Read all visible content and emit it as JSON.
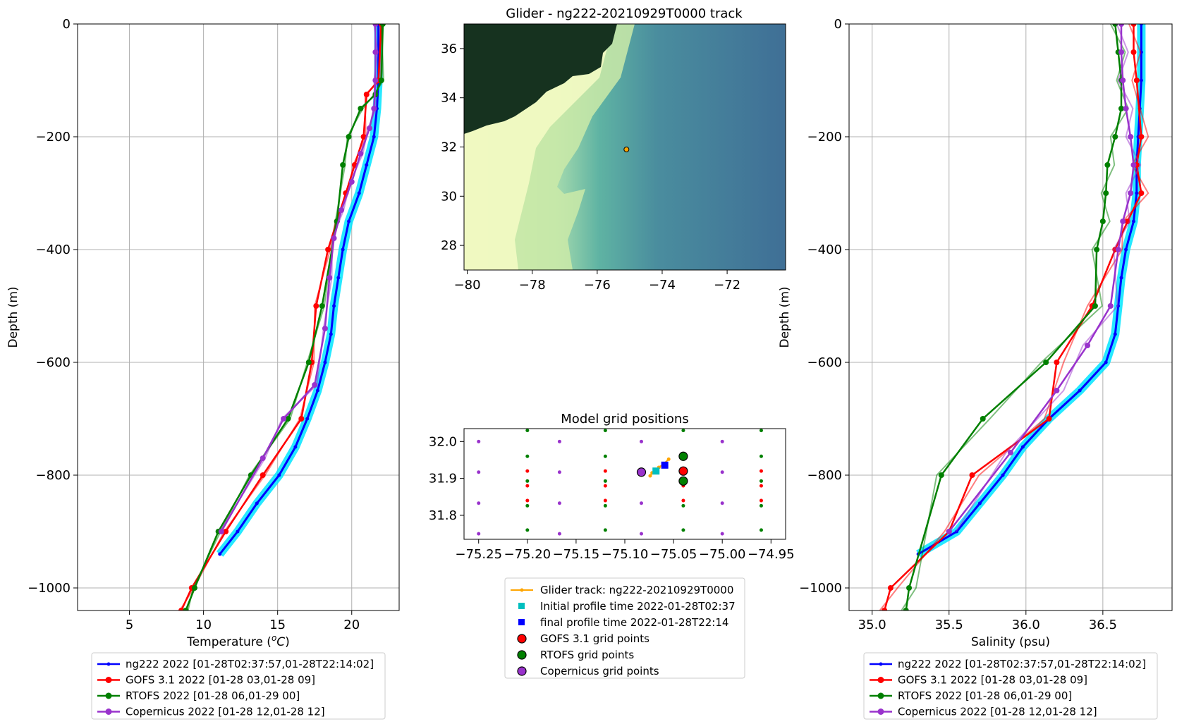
{
  "chart_data": [
    {
      "type": "line",
      "panel": "temperature",
      "xlabel": "Temperature (°C)",
      "ylabel": "Depth (m)",
      "xlim": [
        1.5,
        23.2
      ],
      "ylim": [
        -1040,
        0
      ],
      "xticks": [
        5,
        10,
        15,
        20
      ],
      "yticks": [
        0,
        -200,
        -400,
        -600,
        -800,
        -1000
      ],
      "grid": true,
      "legend": "below",
      "series": [
        {
          "name": "ng222 2022 [01-28T02:37:57,01-28T22:14:02]",
          "color": "#0000ff",
          "marker": "dot",
          "x": [
            21.8,
            21.8,
            21.8,
            21.7,
            21.5,
            21.0,
            20.5,
            19.8,
            19.4,
            19.1,
            18.8,
            18.6,
            18.2,
            17.7,
            17.0,
            16.2,
            15.1,
            13.6,
            12.3,
            11.1
          ],
          "y": [
            0,
            -50,
            -100,
            -150,
            -200,
            -250,
            -300,
            -350,
            -400,
            -450,
            -500,
            -550,
            -600,
            -650,
            -700,
            -750,
            -800,
            -850,
            -900,
            -940
          ]
        },
        {
          "name": "GOFS 3.1 2022 [01-28 03,01-28 09]",
          "color": "#ff0000",
          "marker": "circle",
          "x": [
            22.0,
            21.8,
            21.0,
            20.8,
            20.2,
            19.6,
            19.0,
            18.4,
            17.6,
            17.3,
            16.6,
            14.0,
            11.5,
            9.2,
            8.5
          ],
          "y": [
            0,
            -100,
            -125,
            -200,
            -250,
            -300,
            -350,
            -400,
            -500,
            -600,
            -700,
            -800,
            -900,
            -1000,
            -1040
          ]
        },
        {
          "name": "RTOFS 2022 [01-28 06,01-29 00]",
          "color": "#008000",
          "marker": "circle",
          "x": [
            22.1,
            22.0,
            21.6,
            20.6,
            19.8,
            19.4,
            19.0,
            18.0,
            17.1,
            15.7,
            13.2,
            11.0,
            9.4,
            8.8
          ],
          "y": [
            0,
            -100,
            -125,
            -150,
            -200,
            -250,
            -350,
            -500,
            -600,
            -700,
            -800,
            -900,
            -1000,
            -1040
          ]
        },
        {
          "name": "Copernicus 2022 [01-28 12,01-28 12]",
          "color": "#9932cc",
          "marker": "circle",
          "x": [
            21.6,
            21.6,
            21.6,
            21.5,
            21.2,
            20.6,
            20.0,
            19.3,
            18.8,
            18.5,
            18.2,
            17.5,
            15.4,
            14.0,
            11.2
          ],
          "y": [
            0,
            -50,
            -100,
            -150,
            -185,
            -230,
            -280,
            -330,
            -380,
            -450,
            -540,
            -640,
            -700,
            -770,
            -900
          ]
        }
      ]
    },
    {
      "type": "map",
      "panel": "track_map",
      "title": "Glider - ng222-20210929T0000 track",
      "xlim": [
        -80.1,
        -70.2
      ],
      "ylim": [
        27,
        37
      ],
      "xticks": [
        -80,
        -78,
        -76,
        -74,
        -72
      ],
      "yticks": [
        36,
        34,
        32,
        30,
        28
      ],
      "glider_position": [
        -75.1,
        31.9
      ]
    },
    {
      "type": "scatter",
      "panel": "model_grid",
      "title": "Model grid positions",
      "xlim": [
        -75.265,
        -74.935
      ],
      "ylim": [
        31.735,
        32.035
      ],
      "xticks": [
        -75.25,
        -75.2,
        -75.15,
        -75.1,
        -75.05,
        -75.0,
        -74.95
      ],
      "yticks": [
        32.0,
        31.9,
        31.8
      ],
      "series": [
        {
          "name": "Glider track: ng222-20210929T0000",
          "color": "#ffa500",
          "marker": "line-dot",
          "x": [
            -75.074,
            -75.072,
            -75.068,
            -75.065,
            -75.06,
            -75.055
          ],
          "y": [
            31.907,
            31.915,
            31.922,
            31.93,
            31.94,
            31.952
          ]
        },
        {
          "name": "Initial profile time 2022-01-28T02:37",
          "color": "#00bfbf",
          "marker": "square",
          "x": [
            -75.068
          ],
          "y": [
            31.92
          ]
        },
        {
          "name": "final profile time 2022-01-28T22:14",
          "color": "#0000ff",
          "marker": "square",
          "x": [
            -75.059
          ],
          "y": [
            31.936
          ]
        },
        {
          "name": "GOFS 3.1 grid points",
          "color": "#ff0000",
          "marker": "circle",
          "x": [
            -75.04
          ],
          "y": [
            31.92
          ]
        },
        {
          "name": "RTOFS grid points",
          "color": "#008000",
          "marker": "circle",
          "x": [
            -75.04,
            -75.04
          ],
          "y": [
            31.96,
            31.893
          ]
        },
        {
          "name": "Copernicus grid points",
          "color": "#9932cc",
          "marker": "circle",
          "x": [
            -75.083
          ],
          "y": [
            31.917
          ]
        }
      ],
      "grid_points": {
        "gofs_x": [
          -75.2,
          -75.12,
          -75.04,
          -74.96
        ],
        "gofs_y": [
          31.92,
          31.88,
          31.84
        ],
        "rtofs_x": [
          -75.2,
          -75.12,
          -75.04,
          -74.96
        ],
        "rtofs_y": [
          32.03,
          31.96,
          31.893,
          31.826,
          31.76
        ],
        "cop_x": [
          -75.25,
          -75.167,
          -75.083,
          -75.0
        ],
        "cop_y": [
          32.0,
          31.917,
          31.833,
          31.75
        ]
      }
    },
    {
      "type": "line",
      "panel": "salinity",
      "xlabel": "Salinity (psu)",
      "ylabel": "Depth (m)",
      "xlim": [
        34.85,
        36.95
      ],
      "ylim": [
        -1040,
        0
      ],
      "xticks": [
        35.0,
        35.5,
        36.0,
        36.5
      ],
      "yticks": [
        0,
        -200,
        -400,
        -600,
        -800,
        -1000
      ],
      "grid": true,
      "legend": "below",
      "series": [
        {
          "name": "ng222 2022 [01-28T02:37:57,01-28T22:14:02]",
          "color": "#0000ff",
          "marker": "dot",
          "x": [
            36.75,
            36.75,
            36.75,
            36.74,
            36.73,
            36.72,
            36.72,
            36.7,
            36.65,
            36.62,
            36.6,
            36.58,
            36.52,
            36.35,
            36.15,
            35.98,
            35.85,
            35.7,
            35.55,
            35.3
          ],
          "y": [
            0,
            -50,
            -100,
            -150,
            -200,
            -250,
            -300,
            -350,
            -400,
            -450,
            -500,
            -550,
            -600,
            -650,
            -700,
            -750,
            -800,
            -850,
            -900,
            -940
          ]
        },
        {
          "name": "GOFS 3.1 2022 [01-28 03,01-28 09]",
          "color": "#ff0000",
          "marker": "circle",
          "x": [
            36.7,
            36.7,
            36.72,
            36.75,
            36.72,
            36.75,
            36.66,
            36.58,
            36.43,
            36.2,
            36.15,
            35.65,
            35.5,
            35.12,
            35.08
          ],
          "y": [
            0,
            -50,
            -100,
            -200,
            -250,
            -300,
            -350,
            -400,
            -500,
            -600,
            -700,
            -800,
            -900,
            -1000,
            -1040
          ]
        },
        {
          "name": "RTOFS 2022 [01-28 06,01-29 00]",
          "color": "#008000",
          "marker": "circle",
          "x": [
            36.58,
            36.6,
            36.62,
            36.62,
            36.58,
            36.53,
            36.52,
            36.5,
            36.46,
            36.45,
            36.13,
            35.72,
            35.45,
            35.24,
            35.22
          ],
          "y": [
            0,
            -50,
            -100,
            -150,
            -200,
            -250,
            -300,
            -350,
            -400,
            -500,
            -600,
            -700,
            -800,
            -1000,
            -1040
          ]
        },
        {
          "name": "Copernicus 2022 [01-28 12,01-28 12]",
          "color": "#9932cc",
          "marker": "circle",
          "x": [
            36.62,
            36.62,
            36.63,
            36.65,
            36.68,
            36.7,
            36.68,
            36.63,
            36.6,
            36.55,
            36.4,
            36.2,
            35.9,
            35.5
          ],
          "y": [
            0,
            -50,
            -100,
            -150,
            -200,
            -250,
            -300,
            -350,
            -400,
            -500,
            -570,
            -650,
            -760,
            -900
          ]
        }
      ]
    }
  ]
}
